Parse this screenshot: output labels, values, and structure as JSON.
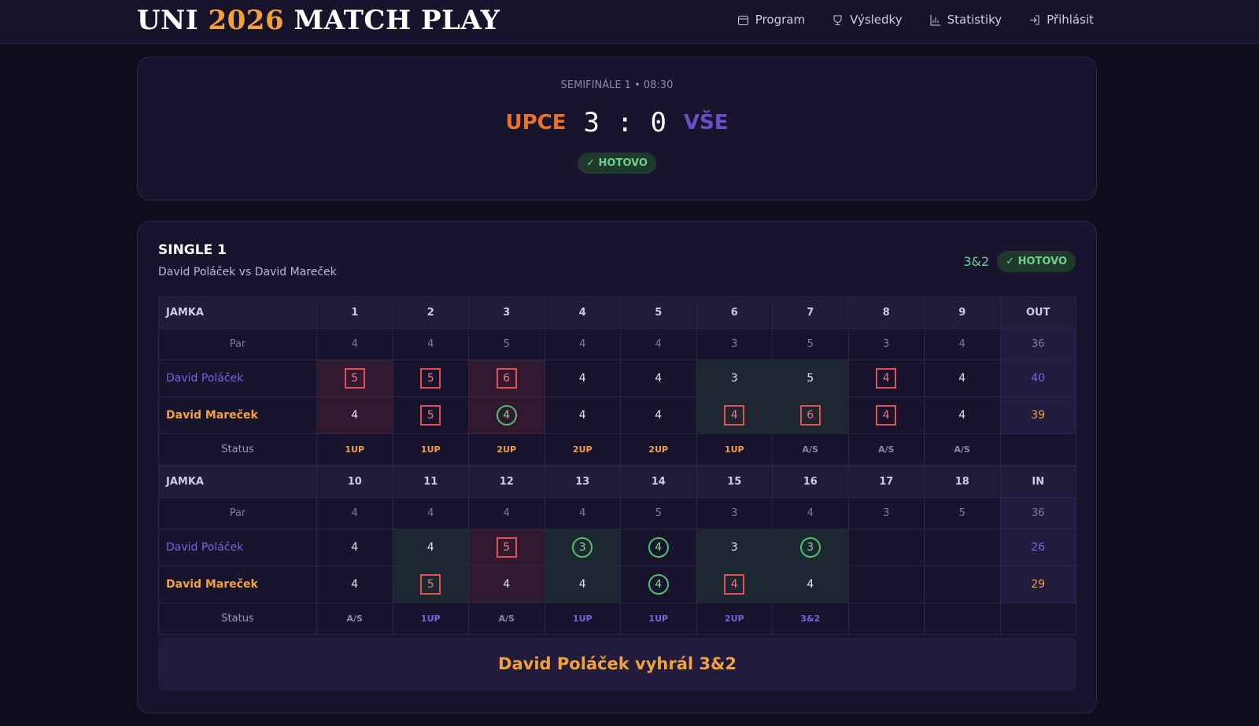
{
  "header": {
    "title_pre": "UNI",
    "title_year": "2026",
    "title_post": "MATCH PLAY",
    "nav": [
      "Program",
      "Výsledky",
      "Statistiky",
      "Přihlásit"
    ]
  },
  "match": {
    "stage": "SEMIFINÁLE 1 • 08:30",
    "home": "UPCE",
    "home_score": 3,
    "separator": ":",
    "away_score": 0,
    "away": "VŠE",
    "status": "HOTOVO"
  },
  "single": {
    "title": "SINGLE 1",
    "subtitle": "David Poláček vs David Mareček",
    "result": "3&2",
    "status": "HOTOVO",
    "halves": [
      {
        "header": "JAMKA",
        "holes": [
          1,
          2,
          3,
          4,
          5,
          6,
          7,
          8,
          9
        ],
        "total_label": "OUT",
        "par_label": "Par",
        "par": [
          4,
          4,
          5,
          4,
          4,
          3,
          5,
          3,
          4
        ],
        "par_total": 36,
        "players": [
          {
            "name": "David Poláček",
            "color": "#7e5fe0",
            "scores": [
              5,
              5,
              6,
              4,
              4,
              3,
              5,
              4,
              4
            ],
            "total": 40
          },
          {
            "name": "David Mareček",
            "color": "#f2a23c",
            "scores": [
              4,
              5,
              4,
              4,
              4,
              4,
              6,
              4,
              4
            ],
            "total": 39
          }
        ],
        "status_label": "Status",
        "status": [
          "1UP",
          "1UP",
          "2UP",
          "2UP",
          "2UP",
          "1UP",
          "A/S",
          "A/S",
          "A/S"
        ],
        "status_colors": [
          "#f2a23c",
          "#f2a23c",
          "#f2a23c",
          "#f2a23c",
          "#f2a23c",
          "#f2a23c",
          "#8d88a6",
          "#8d88a6",
          "#8d88a6"
        ]
      },
      {
        "header": "JAMKA",
        "holes": [
          10,
          11,
          12,
          13,
          14,
          15,
          16,
          17,
          18
        ],
        "total_label": "IN",
        "par_label": "Par",
        "par": [
          4,
          4,
          4,
          4,
          5,
          3,
          4,
          3,
          5
        ],
        "par_total": 36,
        "players": [
          {
            "name": "David Poláček",
            "color": "#7e5fe0",
            "scores": [
              4,
              4,
              5,
              3,
              4,
              3,
              3,
              null,
              null
            ],
            "total": 26
          },
          {
            "name": "David Mareček",
            "color": "#f2a23c",
            "scores": [
              4,
              5,
              4,
              4,
              4,
              4,
              4,
              null,
              null
            ],
            "total": 29
          }
        ],
        "status_label": "Status",
        "status": [
          "A/S",
          "1UP",
          "A/S",
          "1UP",
          "1UP",
          "2UP",
          "3&2",
          null,
          null
        ],
        "status_colors": [
          "#8d88a6",
          "#7e5fe0",
          "#8d88a6",
          "#7e5fe0",
          "#7e5fe0",
          "#7e5fe0",
          "#7e5fe0",
          "#8d88a6",
          "#8d88a6"
        ]
      }
    ],
    "winner_banner": "David Poláček vyhrál 3&2"
  }
}
